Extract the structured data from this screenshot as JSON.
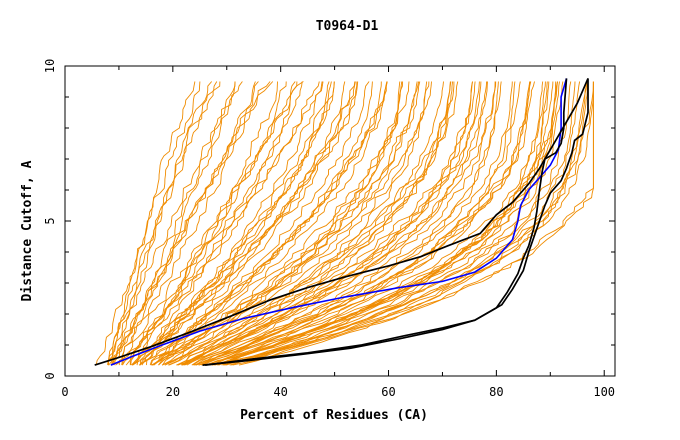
{
  "chart_data": {
    "type": "line",
    "title": "T0964-D1",
    "xlabel": "Percent of Residues (CA)",
    "ylabel": "Distance Cutoff, A",
    "xlim": [
      0,
      102
    ],
    "ylim": [
      0,
      10
    ],
    "x_ticks": [
      0,
      20,
      40,
      60,
      80,
      100
    ],
    "y_ticks": [
      0,
      5,
      10
    ],
    "grid": false,
    "legend": "none",
    "colors": {
      "background_models": "#f08c00",
      "highlight_blue": "#0000ff",
      "highlight_black": "#000000"
    },
    "background_series_count": 90,
    "highlight_series": [
      {
        "color": "#0000ff",
        "points": [
          [
            8.5,
            0.35
          ],
          [
            12,
            0.6
          ],
          [
            18,
            1.0
          ],
          [
            25,
            1.45
          ],
          [
            33,
            1.85
          ],
          [
            42,
            2.2
          ],
          [
            52,
            2.55
          ],
          [
            62,
            2.85
          ],
          [
            70,
            3.05
          ],
          [
            76,
            3.35
          ],
          [
            80,
            3.8
          ],
          [
            83,
            4.4
          ],
          [
            84,
            5.0
          ],
          [
            84.5,
            5.5
          ],
          [
            86,
            6.0
          ],
          [
            88,
            6.4
          ],
          [
            90,
            6.8
          ],
          [
            91.5,
            7.3
          ],
          [
            92,
            8.0
          ],
          [
            92,
            9.0
          ],
          [
            93,
            9.6
          ]
        ]
      },
      {
        "color": "#000000",
        "points": [
          [
            5.5,
            0.35
          ],
          [
            10,
            0.6
          ],
          [
            16,
            0.95
          ],
          [
            23,
            1.4
          ],
          [
            31,
            1.95
          ],
          [
            38,
            2.45
          ],
          [
            45,
            2.85
          ],
          [
            52,
            3.2
          ],
          [
            60,
            3.55
          ],
          [
            66,
            3.85
          ],
          [
            71,
            4.2
          ],
          [
            77,
            4.6
          ],
          [
            80,
            5.2
          ],
          [
            83,
            5.6
          ],
          [
            86,
            6.2
          ],
          [
            88,
            6.7
          ],
          [
            89,
            7.0
          ],
          [
            91,
            7.6
          ],
          [
            93,
            8.2
          ],
          [
            95,
            8.8
          ],
          [
            97,
            9.6
          ]
        ]
      },
      {
        "color": "#000000",
        "points": [
          [
            26,
            0.35
          ],
          [
            35,
            0.55
          ],
          [
            45,
            0.75
          ],
          [
            55,
            1.0
          ],
          [
            63,
            1.3
          ],
          [
            70,
            1.55
          ],
          [
            76,
            1.8
          ],
          [
            80,
            2.2
          ],
          [
            82,
            2.7
          ],
          [
            84,
            3.3
          ],
          [
            85,
            3.8
          ],
          [
            86,
            4.2
          ],
          [
            87,
            4.8
          ],
          [
            87.5,
            5.3
          ],
          [
            88,
            6.0
          ],
          [
            88.5,
            6.6
          ],
          [
            89,
            7.0
          ],
          [
            91,
            7.2
          ],
          [
            92,
            7.5
          ],
          [
            92.5,
            8.0
          ],
          [
            92.5,
            8.5
          ],
          [
            93,
            9.6
          ]
        ]
      },
      {
        "color": "#000000",
        "points": [
          [
            25.5,
            0.35
          ],
          [
            34,
            0.5
          ],
          [
            44,
            0.7
          ],
          [
            53,
            0.9
          ],
          [
            62,
            1.2
          ],
          [
            70,
            1.5
          ],
          [
            76,
            1.8
          ],
          [
            81,
            2.3
          ],
          [
            83,
            2.8
          ],
          [
            85,
            3.4
          ],
          [
            86,
            4.0
          ],
          [
            87,
            4.5
          ],
          [
            88,
            5.0
          ],
          [
            89,
            5.5
          ],
          [
            90,
            5.9
          ],
          [
            92,
            6.3
          ],
          [
            93,
            6.7
          ],
          [
            94,
            7.2
          ],
          [
            94.5,
            7.6
          ],
          [
            96,
            7.8
          ],
          [
            97,
            8.5
          ],
          [
            97,
            9.6
          ]
        ]
      }
    ]
  }
}
